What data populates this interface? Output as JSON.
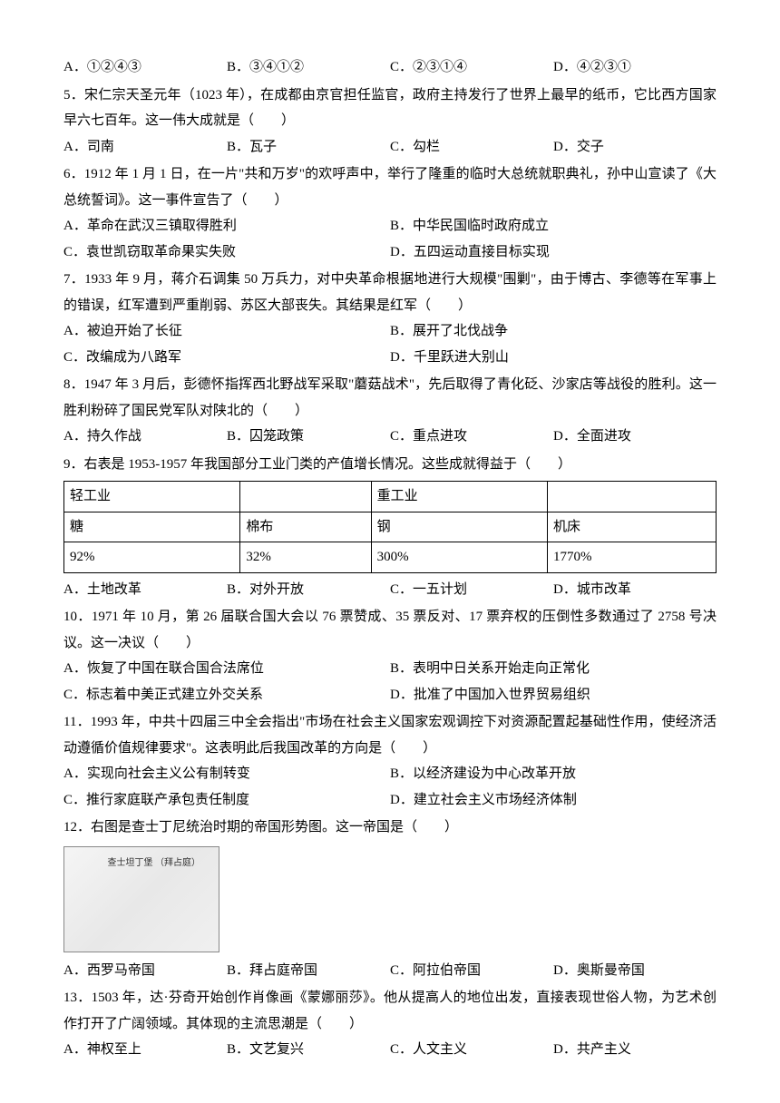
{
  "q4_options": {
    "a": "A．①②④③",
    "b": "B．③④①②",
    "c": "C．②③①④",
    "d": "D．④②③①"
  },
  "q5": {
    "text": "5．宋仁宗天圣元年（1023 年），在成都由京官担任监官，政府主持发行了世界上最早的纸币，它比西方国家早六七百年。这一伟大成就是（　　）",
    "a": "A．司南",
    "b": "B．瓦子",
    "c": "C．勾栏",
    "d": "D．交子"
  },
  "q6": {
    "text": "6．1912 年 1 月 1 日，在一片\"共和万岁\"的欢呼声中，举行了隆重的临时大总统就职典礼，孙中山宣读了《大总统誓词》。这一事件宣告了（　　）",
    "a": "A．革命在武汉三镇取得胜利",
    "b": "B．中华民国临时政府成立",
    "c": "C．袁世凯窃取革命果实失败",
    "d": "D．五四运动直接目标实现"
  },
  "q7": {
    "text": "7．1933 年 9 月，蒋介石调集 50 万兵力，对中央革命根据地进行大规模\"围剿\"，由于博古、李德等在军事上的错误，红军遭到严重削弱、苏区大部丧失。其结果是红军（　　）",
    "a": "A．被迫开始了长征",
    "b": "B．展开了北伐战争",
    "c": "C．改编成为八路军",
    "d": "D．千里跃进大别山"
  },
  "q8": {
    "text": "8．1947 年 3 月后，彭德怀指挥西北野战军采取\"蘑菇战术\"，先后取得了青化砭、沙家店等战役的胜利。这一胜利粉碎了国民党军队对陕北的（　　）",
    "a": "A．持久作战",
    "b": "B．囚笼政策",
    "c": "C．重点进攻",
    "d": "D．全面进攻"
  },
  "q9": {
    "text": "9．右表是 1953-1957 年我国部分工业门类的产值增长情况。这些成就得益于（　　）",
    "table": {
      "r1c1": "轻工业",
      "r1c2": "",
      "r1c3": "重工业",
      "r1c4": "",
      "r2c1": "糖",
      "r2c2": "棉布",
      "r2c3": "钢",
      "r2c4": "机床",
      "r3c1": "92%",
      "r3c2": "32%",
      "r3c3": "300%",
      "r3c4": "1770%"
    },
    "a": "A．土地改革",
    "b": "B．对外开放",
    "c": "C．一五计划",
    "d": "D．城市改革"
  },
  "q10": {
    "text": "10．1971 年 10 月，第 26 届联合国大会以 76 票赞成、35 票反对、17 票弃权的压倒性多数通过了 2758 号决议。这一决议（　　）",
    "a": "A．恢复了中国在联合国合法席位",
    "b": "B．表明中日关系开始走向正常化",
    "c": "C．标志着中美正式建立外交关系",
    "d": "D．批准了中国加入世界贸易组织"
  },
  "q11": {
    "text": "11．1993 年，中共十四届三中全会指出\"市场在社会主义国家宏观调控下对资源配置起基础性作用，使经济活动遵循价值规律要求\"。这表明此后我国改革的方向是（　　）",
    "a": "A．实现向社会主义公有制转变",
    "b": "B．以经济建设为中心改革开放",
    "c": "C．推行家庭联产承包责任制度",
    "d": "D．建立社会主义市场经济体制"
  },
  "q12": {
    "text": "12．右图是查士丁尼统治时期的帝国形势图。这一帝国是（　　）",
    "map_label": "查士坦丁堡\n（拜占庭）",
    "a": "A．西罗马帝国",
    "b": "B．拜占庭帝国",
    "c": "C．阿拉伯帝国",
    "d": "D．奥斯曼帝国"
  },
  "q13": {
    "text": "13．1503 年，达·芬奇开始创作肖像画《蒙娜丽莎》。他从提高人的地位出发，直接表现世俗人物，为艺术创作打开了广阔领域。其体现的主流思潮是（　　）",
    "a": "A．神权至上",
    "b": "B．文艺复兴",
    "c": "C．人文主义",
    "d": "D．共产主义"
  }
}
